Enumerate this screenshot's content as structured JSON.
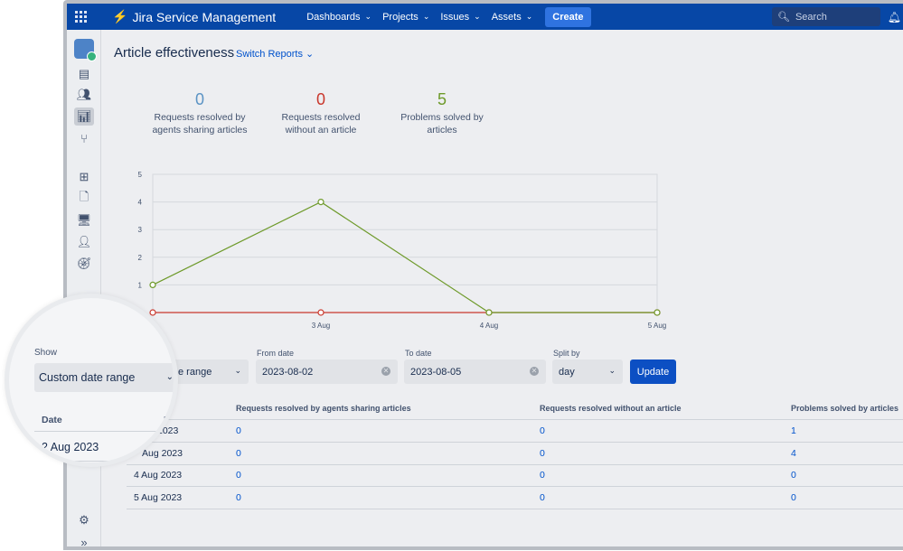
{
  "header": {
    "product": "Jira Service Management",
    "nav": [
      "Dashboards",
      "Projects",
      "Issues",
      "Assets"
    ],
    "create_label": "Create",
    "search_placeholder": "Search"
  },
  "page": {
    "title": "Article effectiveness",
    "switch_reports": "Switch Reports"
  },
  "stats": [
    {
      "value": "0",
      "label_line1": "Requests resolved by",
      "label_line2": "agents sharing articles",
      "color": "#5b93c4"
    },
    {
      "value": "0",
      "label_line1": "Requests resolved",
      "label_line2": "without an article",
      "color": "#c9372c"
    },
    {
      "value": "5",
      "label_line1": "Problems solved by",
      "label_line2": "articles",
      "color": "#6e9a2a"
    }
  ],
  "chart_data": {
    "type": "line",
    "x": [
      "2 Aug",
      "3 Aug",
      "4 Aug",
      "5 Aug"
    ],
    "x_tick_labels": [
      "3 Aug",
      "4 Aug",
      "5 Aug"
    ],
    "ylim": [
      0,
      5
    ],
    "y_ticks": [
      "1",
      "2",
      "3",
      "4",
      "5"
    ],
    "grid": true,
    "series": [
      {
        "values": [
          0,
          0,
          0,
          0
        ],
        "color": "#c9372c"
      },
      {
        "values": [
          1,
          4,
          0,
          0
        ],
        "color": "#6e9a2a"
      }
    ]
  },
  "filters": {
    "show_value_partial": "e range",
    "from_label": "From date",
    "from_value": "2023-08-02",
    "to_label": "To date",
    "to_value": "2023-08-05",
    "split_label": "Split by",
    "split_value": "day",
    "update_label": "Update"
  },
  "table": {
    "headers": [
      "Requests resolved by agents sharing articles",
      "Requests resolved without an article",
      "Problems solved by articles"
    ],
    "rows": [
      {
        "date": "2023",
        "a": "0",
        "b": "0",
        "c": "1"
      },
      {
        "date": "Aug 2023",
        "a": "0",
        "b": "0",
        "c": "4"
      },
      {
        "date": "4 Aug 2023",
        "a": "0",
        "b": "0",
        "c": "0"
      },
      {
        "date": "5 Aug 2023",
        "a": "0",
        "b": "0",
        "c": "0"
      }
    ]
  },
  "magnifier": {
    "show_label": "Show",
    "select_value": "Custom date range",
    "date_header": "Date",
    "re_header": "Re",
    "row1": "2 Aug 2023",
    "row2": "2023"
  },
  "icons": {
    "apps": "apps-grid-icon",
    "logo": "bolt-icon",
    "settings": "gear-icon",
    "expand": "double-chevron-right-icon"
  }
}
